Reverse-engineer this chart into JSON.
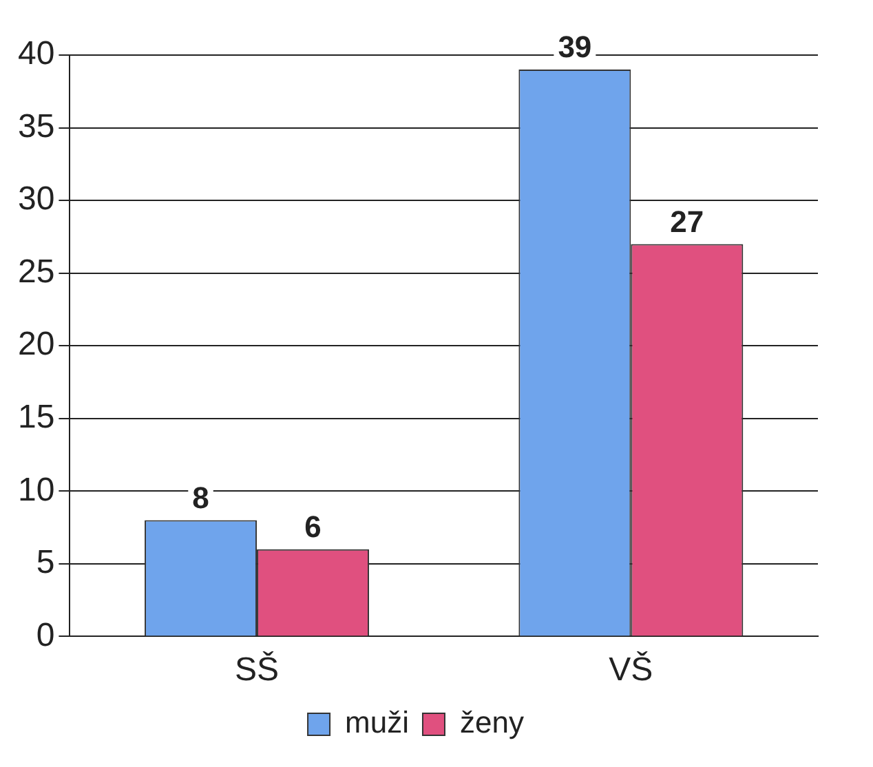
{
  "chart_data": {
    "type": "bar",
    "categories": [
      "SŠ",
      "VŠ"
    ],
    "series": [
      {
        "name": "muži",
        "color": "#6fa4ec",
        "values": [
          8,
          39
        ]
      },
      {
        "name": "ženy",
        "color": "#e0507f",
        "values": [
          6,
          27
        ]
      }
    ],
    "ylim": [
      0,
      40
    ],
    "yticks": [
      0,
      5,
      10,
      15,
      20,
      25,
      30,
      35,
      40
    ],
    "grid": "y",
    "legend": "bottom",
    "data_labels": true
  }
}
